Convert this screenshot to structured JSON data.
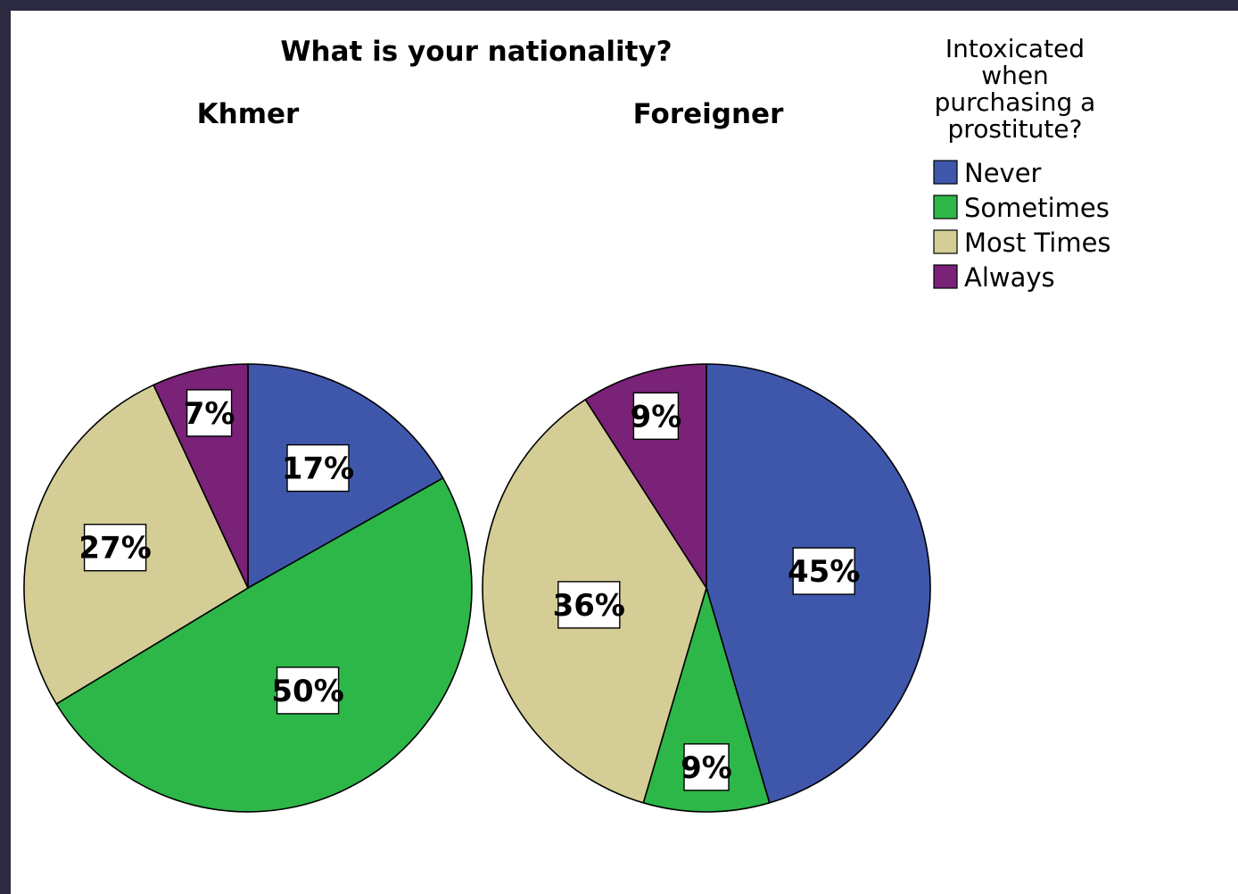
{
  "chart_data": {
    "type": "pie",
    "title": "What is your nationality?",
    "legend": {
      "title": [
        "Intoxicated",
        "when",
        "purchasing a",
        "prostitute?"
      ],
      "placement": "top-right",
      "entries": [
        "Never",
        "Sometimes",
        "Most Times",
        "Always"
      ]
    },
    "categories": [
      "Never",
      "Sometimes",
      "Most Times",
      "Always"
    ],
    "colors": {
      "Never": "#3f57ab",
      "Sometimes": "#2db749",
      "Most Times": "#d4ce96",
      "Always": "#7a2178"
    },
    "series": [
      {
        "name": "Khmer",
        "values": [
          17,
          50,
          27,
          7
        ],
        "labels": [
          "17%",
          "50%",
          "27%",
          "7%"
        ]
      },
      {
        "name": "Foreigner",
        "values": [
          45,
          9,
          36,
          9
        ],
        "labels": [
          "45%",
          "9%",
          "36%",
          "9%"
        ]
      }
    ]
  }
}
